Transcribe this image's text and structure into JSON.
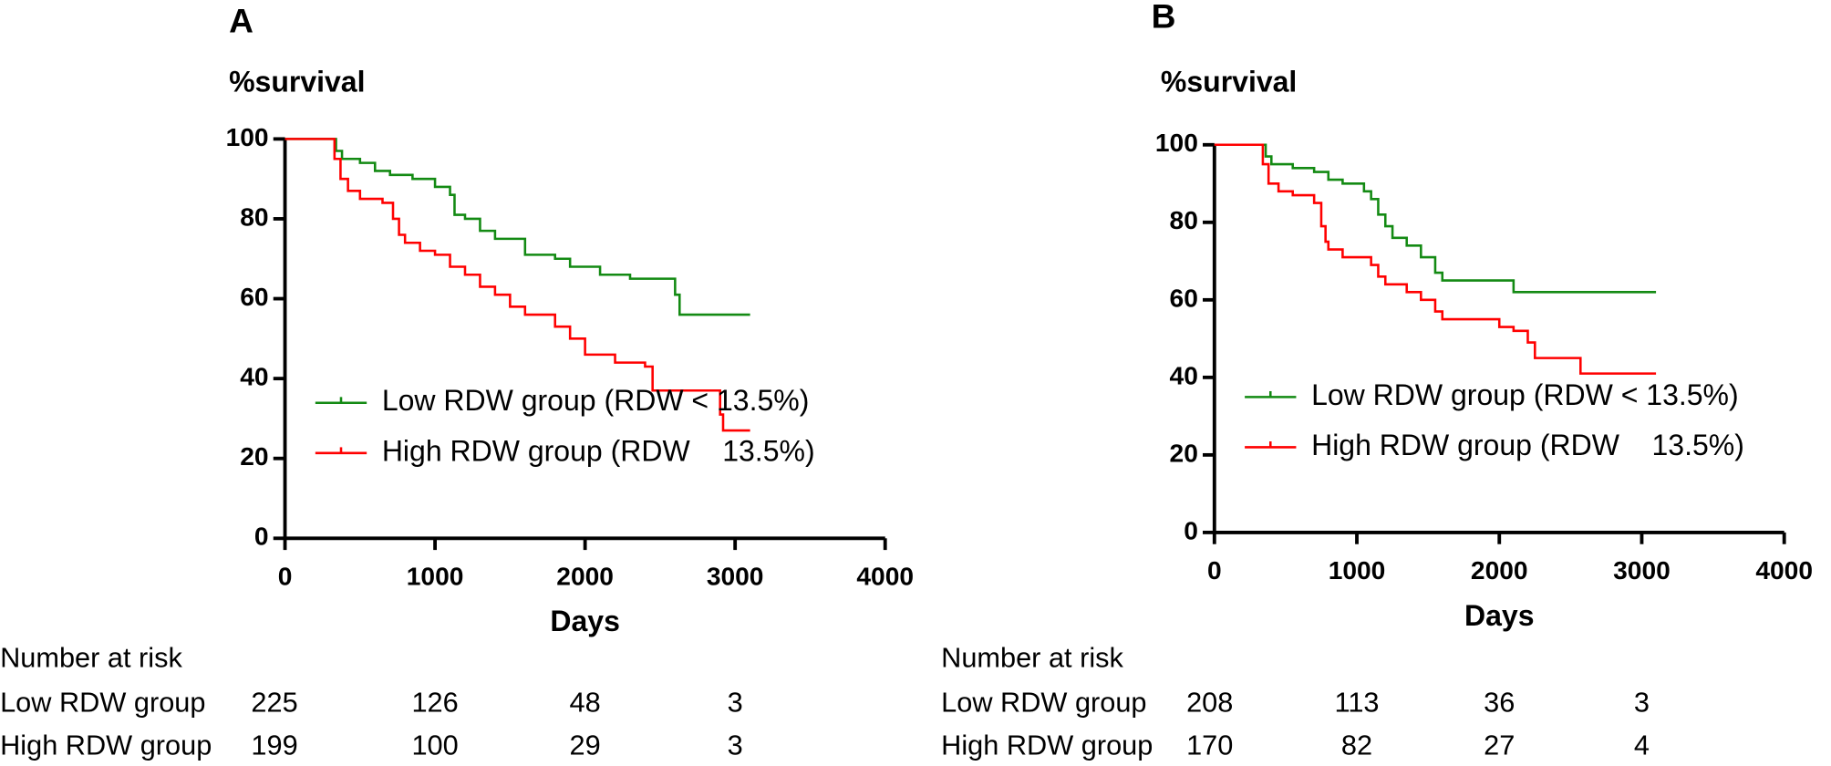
{
  "chart_data": [
    {
      "type": "step",
      "title": "A",
      "ylabel": "%survival",
      "xlabel": "Days",
      "xlim": [
        0,
        4000
      ],
      "xticks": [
        0,
        1000,
        2000,
        3000,
        4000
      ],
      "ylim": [
        0,
        100
      ],
      "yticks": [
        0,
        20,
        40,
        60,
        80,
        100
      ],
      "legend": "lower left",
      "series": [
        {
          "name": "Low RDW group (RDW < 13.5%)",
          "color": "#138a13",
          "x": [
            0,
            320,
            340,
            380,
            500,
            600,
            700,
            850,
            1000,
            1100,
            1130,
            1200,
            1300,
            1400,
            1600,
            1800,
            1900,
            2100,
            2300,
            2600,
            2630,
            3100
          ],
          "y": [
            100,
            100,
            97,
            95,
            94,
            92,
            91,
            90,
            88,
            86,
            81,
            80,
            77,
            75,
            71,
            70,
            68,
            66,
            65,
            61,
            56,
            56
          ]
        },
        {
          "name": "High RDW group (RDW    13.5%)",
          "color": "#ff0000",
          "x": [
            0,
            300,
            330,
            370,
            420,
            500,
            650,
            720,
            760,
            800,
            900,
            1000,
            1100,
            1200,
            1300,
            1400,
            1500,
            1600,
            1800,
            1900,
            2000,
            2200,
            2400,
            2450,
            2800,
            2900,
            2920,
            3100
          ],
          "y": [
            100,
            100,
            95,
            90,
            87,
            85,
            84,
            80,
            76,
            74,
            72,
            71,
            68,
            66,
            63,
            61,
            58,
            56,
            53,
            50,
            46,
            44,
            43,
            37,
            37,
            31,
            27,
            27
          ]
        }
      ],
      "risk_table": {
        "title": "Number at risk",
        "rows": [
          {
            "name": "Low RDW group",
            "values": [
              225,
              126,
              48,
              3
            ]
          },
          {
            "name": "High RDW group",
            "values": [
              199,
              100,
              29,
              3
            ]
          }
        ]
      }
    },
    {
      "type": "step",
      "title": "B",
      "ylabel": "%survival",
      "xlabel": "Days",
      "xlim": [
        0,
        4000
      ],
      "xticks": [
        0,
        1000,
        2000,
        3000,
        4000
      ],
      "ylim": [
        0,
        100
      ],
      "yticks": [
        0,
        20,
        40,
        60,
        80,
        100
      ],
      "legend": "lower left",
      "series": [
        {
          "name": "Low RDW group (RDW < 13.5%)",
          "color": "#138a13",
          "x": [
            0,
            330,
            360,
            400,
            550,
            700,
            800,
            900,
            1050,
            1100,
            1150,
            1200,
            1250,
            1350,
            1450,
            1550,
            1600,
            2000,
            2100,
            3100
          ],
          "y": [
            100,
            100,
            97,
            95,
            94,
            93,
            91,
            90,
            88,
            86,
            82,
            79,
            76,
            74,
            71,
            67,
            65,
            65,
            62,
            62
          ]
        },
        {
          "name": "High RDW group (RDW    13.5%)",
          "color": "#ff0000",
          "x": [
            0,
            300,
            340,
            380,
            450,
            550,
            700,
            750,
            780,
            800,
            900,
            1100,
            1150,
            1200,
            1350,
            1450,
            1550,
            1600,
            1900,
            2000,
            2100,
            2200,
            2250,
            2550,
            2570,
            3100
          ],
          "y": [
            100,
            100,
            95,
            90,
            88,
            87,
            85,
            79,
            75,
            73,
            71,
            69,
            66,
            64,
            62,
            60,
            57,
            55,
            55,
            53,
            52,
            49,
            45,
            45,
            41,
            41
          ]
        }
      ],
      "risk_table": {
        "title": "Number at risk",
        "rows": [
          {
            "name": "Low RDW group",
            "values": [
              208,
              113,
              36,
              3
            ]
          },
          {
            "name": "High RDW group",
            "values": [
              170,
              82,
              27,
              4
            ]
          }
        ]
      }
    }
  ]
}
